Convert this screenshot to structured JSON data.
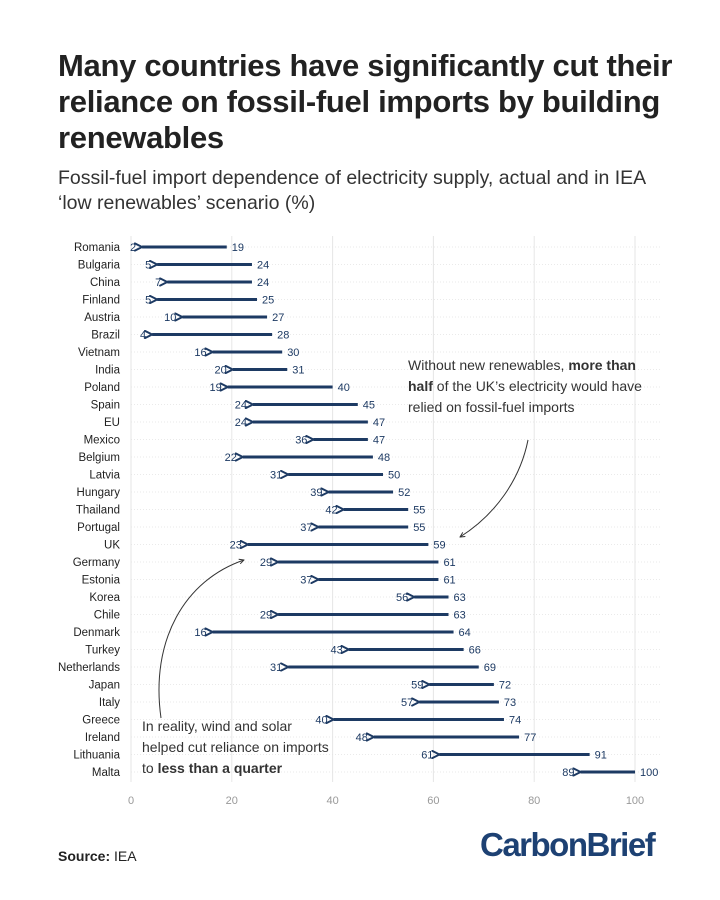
{
  "header": {
    "title": "Many countries have significantly cut their reliance on fossil-fuel imports by building renewables",
    "subtitle": "Fossil-fuel import dependence of electricity supply, actual and in IEA ‘low renewables’ scenario (%)"
  },
  "footer": {
    "source_label": "Source:",
    "source_value": "IEA",
    "brand": "CarbonBrief"
  },
  "colors": {
    "arrow": "#1d3a63",
    "grid": "#e6e6e6",
    "axis_text": "#999999",
    "label": "#1d3a63",
    "annotation": "#333333"
  },
  "chart_data": {
    "type": "arrow",
    "title": "Fossil-fuel import dependence of electricity supply, actual and in IEA ‘low renewables’ scenario (%)",
    "xlabel": "",
    "ylabel": "",
    "xlim": [
      0,
      100
    ],
    "xticks": [
      0,
      20,
      40,
      60,
      80,
      100
    ],
    "grid": true,
    "series": [
      {
        "name": "IEA low renewables scenario",
        "role": "arrow_start"
      },
      {
        "name": "Actual",
        "role": "arrow_head"
      }
    ],
    "categories": [
      "Romania",
      "Bulgaria",
      "China",
      "Finland",
      "Austria",
      "Brazil",
      "Vietnam",
      "India",
      "Poland",
      "Spain",
      "EU",
      "Mexico",
      "Belgium",
      "Latvia",
      "Hungary",
      "Thailand",
      "Portugal",
      "UK",
      "Germany",
      "Estonia",
      "Korea",
      "Chile",
      "Denmark",
      "Turkey",
      "Netherlands",
      "Japan",
      "Italy",
      "Greece",
      "Ireland",
      "Lithuania",
      "Malta"
    ],
    "scenario": [
      19,
      24,
      24,
      25,
      27,
      28,
      30,
      31,
      40,
      45,
      47,
      47,
      48,
      50,
      52,
      55,
      55,
      59,
      61,
      61,
      63,
      63,
      64,
      66,
      69,
      72,
      73,
      74,
      77,
      91,
      100
    ],
    "actual": [
      2,
      5,
      7,
      5,
      10,
      4,
      16,
      20,
      19,
      24,
      24,
      36,
      22,
      31,
      39,
      42,
      37,
      23,
      29,
      37,
      56,
      29,
      16,
      43,
      31,
      59,
      57,
      40,
      48,
      61,
      89
    ],
    "annotations": [
      {
        "target": "UK scenario",
        "lines": [
          [
            {
              "t": "Without new renewables, "
            },
            {
              "t": "more than",
              "b": true
            }
          ],
          [
            {
              "t": "half",
              "b": true
            },
            {
              "t": " of the UK’s electricity would have"
            }
          ],
          [
            {
              "t": "relied on fossil-fuel imports"
            }
          ]
        ]
      },
      {
        "target": "UK actual",
        "lines": [
          [
            {
              "t": "In reality, wind and solar"
            }
          ],
          [
            {
              "t": "helped cut reliance on imports"
            }
          ],
          [
            {
              "t": "to "
            },
            {
              "t": "less than a quarter",
              "b": true
            }
          ]
        ]
      }
    ]
  }
}
